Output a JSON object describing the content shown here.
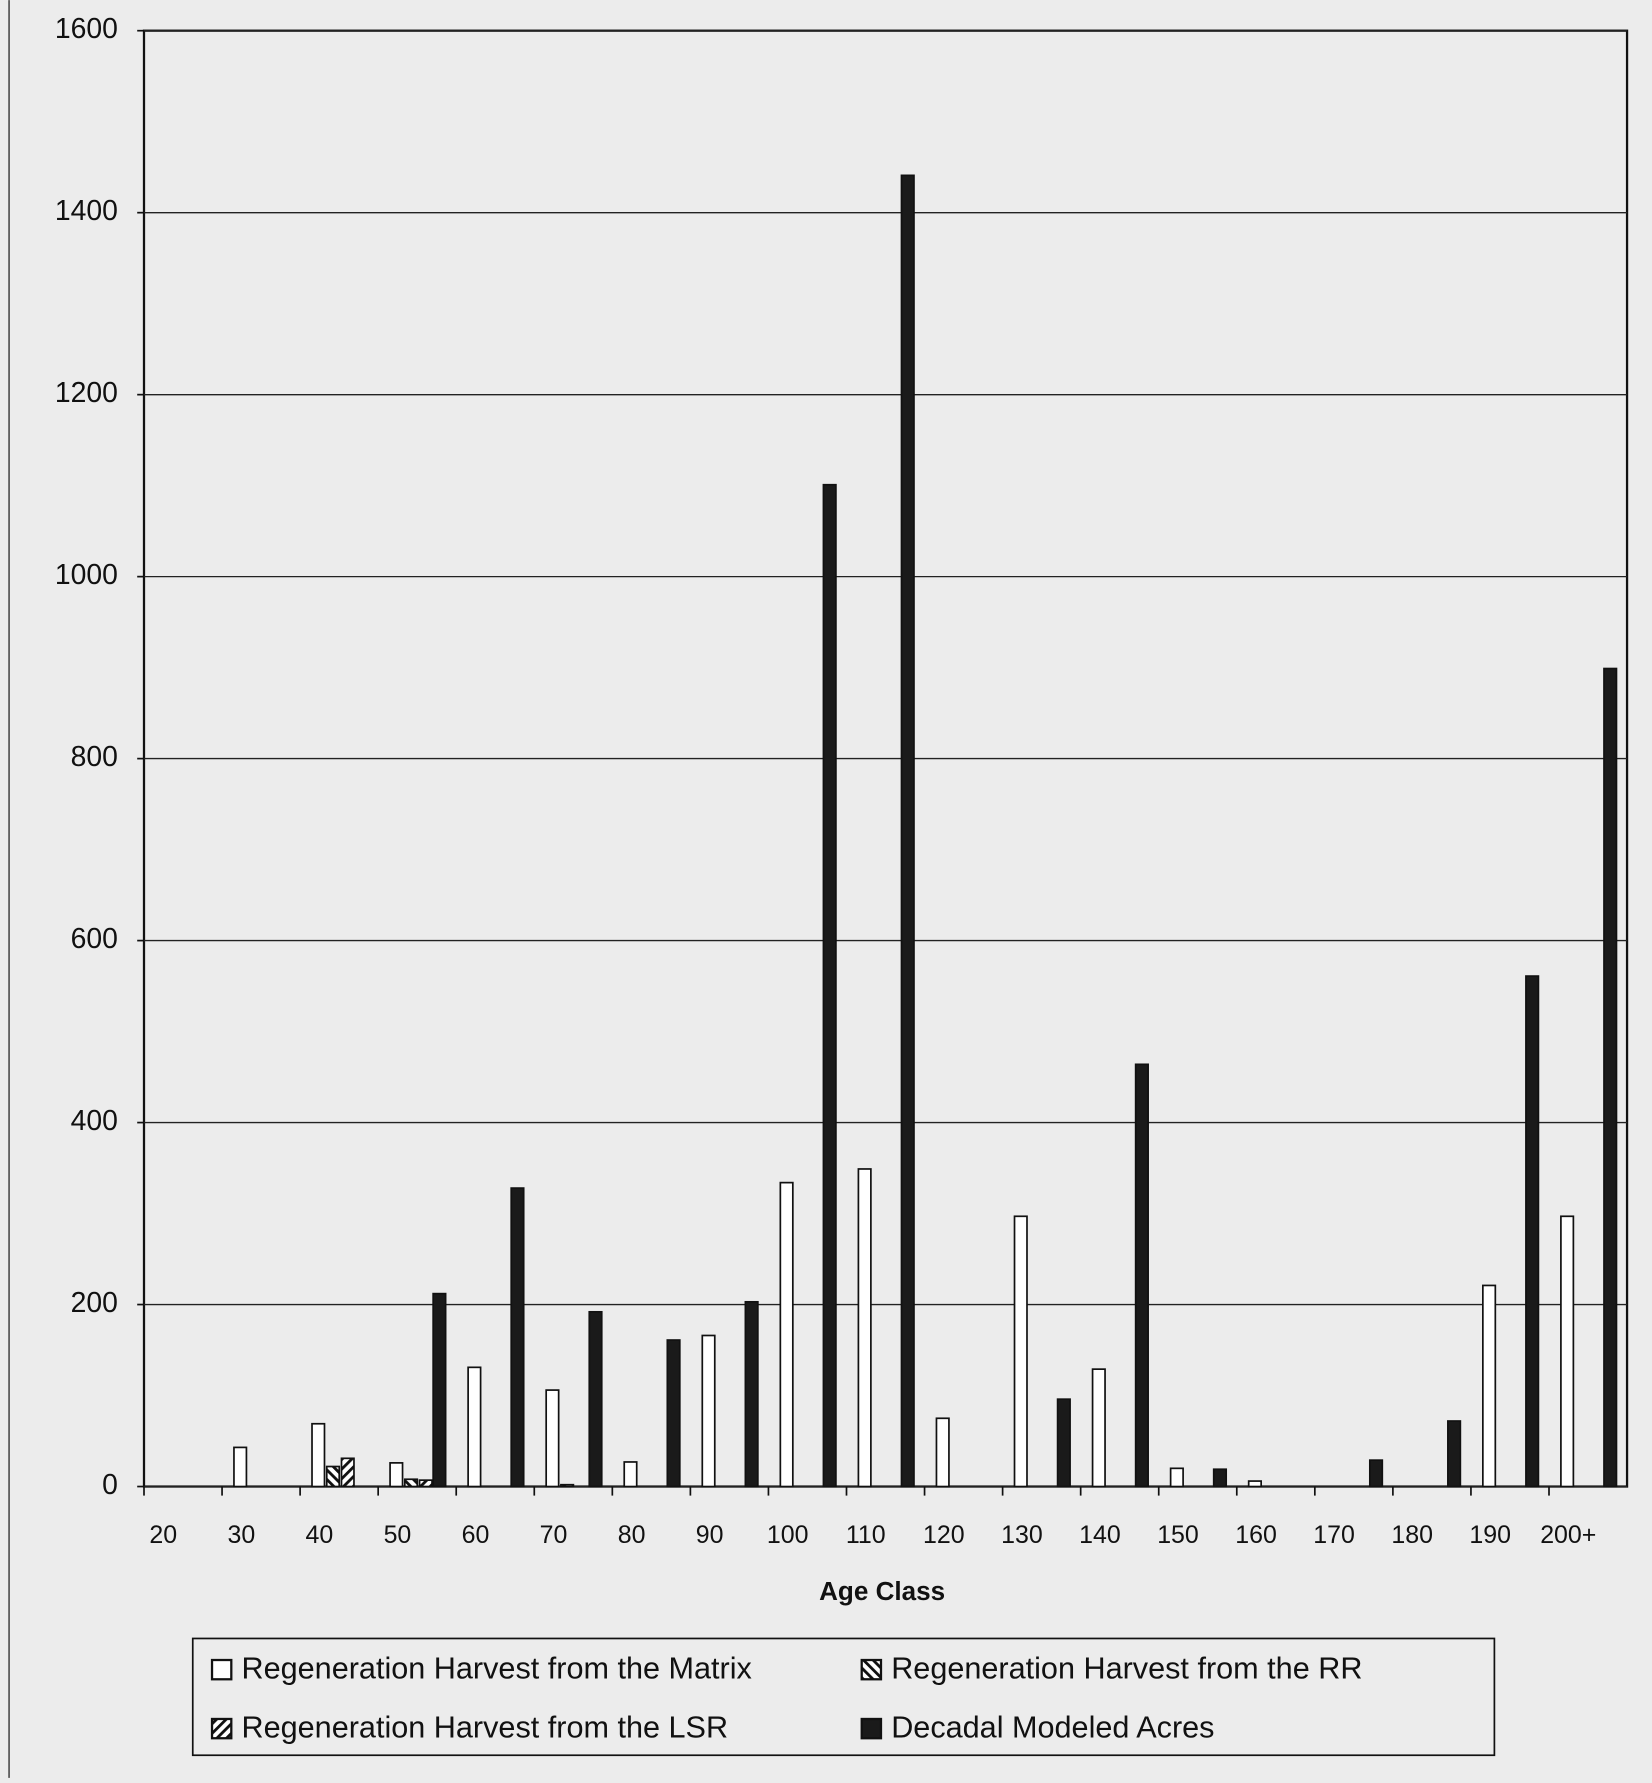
{
  "chart_data": {
    "type": "bar",
    "x_label": "Age Class",
    "categories": [
      "20",
      "30",
      "40",
      "50",
      "60",
      "70",
      "80",
      "90",
      "100",
      "110",
      "120",
      "130",
      "140",
      "150",
      "160",
      "170",
      "180",
      "190",
      "200+"
    ],
    "series": [
      {
        "name": "Regeneration Harvest from the Matrix",
        "color": "#ffffff",
        "pattern": "none",
        "values": [
          0,
          43,
          69,
          26,
          131,
          106,
          27,
          166,
          334,
          349,
          75,
          297,
          129,
          20,
          6,
          0,
          0,
          221,
          297
        ]
      },
      {
        "name": "Regeneration Harvest from the RR",
        "color": "#ffffff",
        "pattern": "backslash",
        "values": [
          0,
          0,
          22,
          8,
          0,
          2,
          0,
          0,
          0,
          0,
          0,
          0,
          0,
          0,
          0,
          0,
          0,
          0,
          0
        ]
      },
      {
        "name": "Regeneration Harvest from the LSR",
        "color": "#ffffff",
        "pattern": "slash",
        "values": [
          0,
          0,
          31,
          7,
          0,
          0,
          0,
          0,
          0,
          0,
          0,
          0,
          0,
          0,
          0,
          0,
          0,
          0,
          0
        ]
      },
      {
        "name": "Decadal Modeled Acres",
        "color": "#1a1a1a",
        "pattern": "none",
        "values": [
          0,
          0,
          0,
          212,
          328,
          192,
          161,
          203,
          1101,
          1441,
          0,
          96,
          464,
          19,
          0,
          29,
          72,
          561,
          899
        ]
      }
    ],
    "ylim": [
      0,
      1600
    ],
    "yticks": [
      0,
      200,
      400,
      600,
      800,
      1000,
      1200,
      1400,
      1600
    ],
    "grid": true
  }
}
